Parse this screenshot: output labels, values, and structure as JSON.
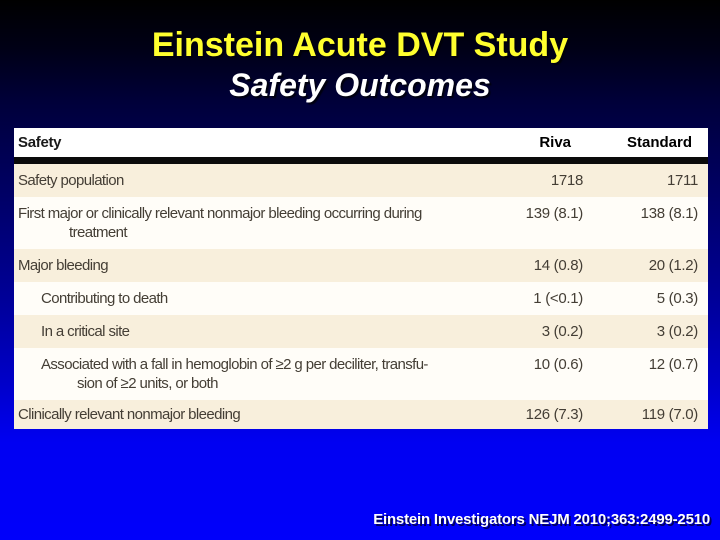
{
  "slide": {
    "title": "Einstein Acute DVT Study",
    "subtitle": "Safety Outcomes",
    "citation": "Einstein Investigators NEJM 2010;363:2499-2510"
  },
  "colors": {
    "background_top": "#000000",
    "background_bottom": "#0000fb",
    "title_yellow": "#ffff2e",
    "subtitle_white": "#ffffff",
    "table_shade_row": "#f8efdc",
    "table_white_row": "#fffdf8",
    "table_text": "#443e35",
    "header_rule": "#0b0b0b"
  },
  "table": {
    "header": {
      "label_col": "Safety",
      "riva_col": "Riva",
      "standard_col": "Standard"
    },
    "rows": [
      {
        "label": "Safety population",
        "label2": "",
        "riva": "1718",
        "standard": "1711",
        "indent": 0,
        "shade": true
      },
      {
        "label": "First major or clinically relevant nonmajor bleeding occurring during",
        "label2": "treatment",
        "riva": "139 (8.1)",
        "standard": "138 (8.1)",
        "indent": 0,
        "shade": false
      },
      {
        "label": "Major bleeding",
        "label2": "",
        "riva": "14 (0.8)",
        "standard": "20 (1.2)",
        "indent": 0,
        "shade": true
      },
      {
        "label": "Contributing to death",
        "label2": "",
        "riva": "1 (<0.1)",
        "standard": "5 (0.3)",
        "indent": 1,
        "shade": false
      },
      {
        "label": "In a critical site",
        "label2": "",
        "riva": "3 (0.2)",
        "standard": "3 (0.2)",
        "indent": 1,
        "shade": true
      },
      {
        "label": "Associated with a fall in hemoglobin of ≥2 g per deciliter, transfu-",
        "label2": "sion of ≥2 units, or both",
        "riva": "10 (0.6)",
        "standard": "12 (0.7)",
        "indent": 1,
        "shade": false
      },
      {
        "label": "Clinically relevant nonmajor bleeding",
        "label2": "",
        "riva": "126 (7.3)",
        "standard": "119 (7.0)",
        "indent": 0,
        "shade": true
      }
    ]
  }
}
